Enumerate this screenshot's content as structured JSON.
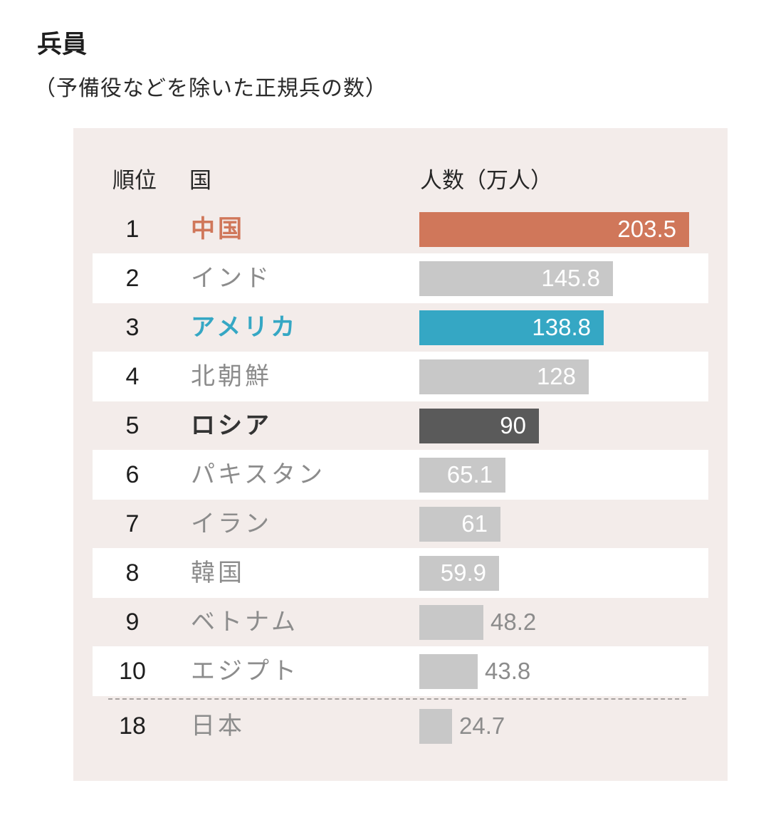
{
  "title": "兵員",
  "subtitle": "（予備役などを除いた正規兵の数）",
  "colors": {
    "panel_bg": "#f3ecea",
    "band_bg": "#ffffff",
    "highlight_orange": "#d0775a",
    "highlight_blue": "#35a7c4",
    "highlight_dark": "#5a5a5a",
    "default_bar": "#c8c8c8",
    "default_text": "#8c8c8c"
  },
  "chart_data": {
    "type": "bar",
    "orientation": "horizontal",
    "title": "兵員",
    "subtitle": "（予備役などを除いた正規兵の数）",
    "column_headers": {
      "rank": "順位",
      "country": "国",
      "value": "人数（万人）"
    },
    "xlim": [
      0,
      203.5
    ],
    "grid": false,
    "rows": [
      {
        "rank": "1",
        "country": "中国",
        "value": 203.5,
        "label": "203.5",
        "style": "orange",
        "band": false
      },
      {
        "rank": "2",
        "country": "インド",
        "value": 145.8,
        "label": "145.8",
        "style": "default",
        "band": true
      },
      {
        "rank": "3",
        "country": "アメリカ",
        "value": 138.8,
        "label": "138.8",
        "style": "blue",
        "band": false
      },
      {
        "rank": "4",
        "country": "北朝鮮",
        "value": 128,
        "label": "128",
        "style": "default",
        "band": true
      },
      {
        "rank": "5",
        "country": "ロシア",
        "value": 90,
        "label": "90",
        "style": "dark",
        "band": false
      },
      {
        "rank": "6",
        "country": "パキスタン",
        "value": 65.1,
        "label": "65.1",
        "style": "default",
        "band": true
      },
      {
        "rank": "7",
        "country": "イラン",
        "value": 61,
        "label": "61",
        "style": "default",
        "band": false
      },
      {
        "rank": "8",
        "country": "韓国",
        "value": 59.9,
        "label": "59.9",
        "style": "default",
        "band": true
      },
      {
        "rank": "9",
        "country": "ベトナム",
        "value": 48.2,
        "label": "48.2",
        "style": "default",
        "band": false
      },
      {
        "rank": "10",
        "country": "エジプト",
        "value": 43.8,
        "label": "43.8",
        "style": "default",
        "band": true
      },
      {
        "rank": "18",
        "country": "日本",
        "value": 24.7,
        "label": "24.7",
        "style": "default",
        "band": false
      }
    ]
  }
}
